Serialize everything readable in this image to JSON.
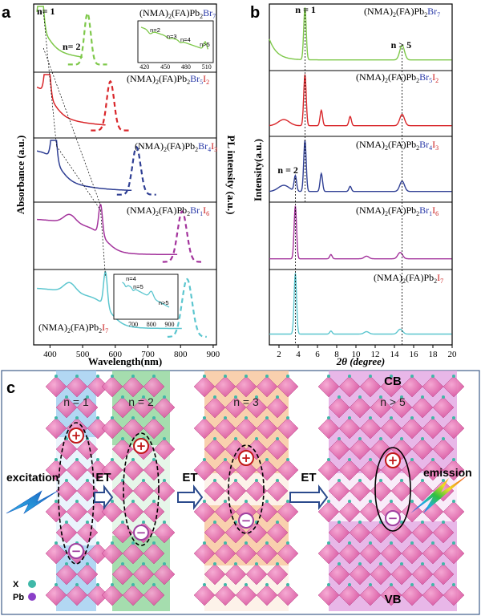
{
  "panels": {
    "a": "a",
    "b": "b",
    "c": "c"
  },
  "chart_data": [
    {
      "panel": "a",
      "type": "line",
      "xlabel": "Wavelength(nm)",
      "ylabel_left": "Absorbance (a.u.)",
      "ylabel_right": "PL intensity (a.u.)",
      "xlim": [
        350,
        910
      ],
      "xticks": [
        400,
        500,
        600,
        700,
        800,
        900
      ],
      "stacked": true,
      "series": [
        {
          "compound": "Br7",
          "color": "#7ec84a",
          "abs_onset_nm": 380,
          "pl_peak_nm": 515,
          "labels": [
            {
              "text": "n= 1",
              "x": 370
            },
            {
              "text": "n= 2",
              "x": 430
            }
          ]
        },
        {
          "compound": "Br5I2",
          "color": "#d9262a",
          "abs_onset_nm": 400,
          "pl_peak_nm": 585
        },
        {
          "compound": "Br4I3",
          "color": "#2f3f94",
          "abs_onset_nm": 420,
          "pl_peak_nm": 665
        },
        {
          "compound": "Br1I6",
          "color": "#a3339c",
          "abs_onset_nm": 555,
          "pl_peak_nm": 805
        },
        {
          "compound": "I7",
          "color": "#5cc6cf",
          "abs_onset_nm": 570,
          "pl_peak_nm": 820
        }
      ],
      "insets": [
        {
          "xticks": [
            420,
            450,
            480,
            510
          ],
          "labels": [
            "n=2",
            "n=3",
            "n=4",
            "n>5"
          ]
        },
        {
          "xticks": [
            700,
            800,
            900
          ],
          "labels": [
            "n=4",
            "n=5",
            "n>5"
          ]
        }
      ]
    },
    {
      "panel": "b",
      "type": "line",
      "xlabel": "2θ (degree)",
      "ylabel": "Intensity(a.u.)",
      "xlim": [
        1,
        20
      ],
      "xticks": [
        2,
        4,
        6,
        8,
        10,
        12,
        14,
        16,
        18,
        20
      ],
      "stacked": true,
      "annotations": [
        {
          "text": "n = 1",
          "x": 4.7
        },
        {
          "text": "n > 5",
          "x": 14.8
        },
        {
          "text": "n = 2",
          "x": 3.7
        }
      ],
      "series": [
        {
          "compound": "Br7",
          "color": "#7ec84a",
          "peaks_2theta": [
            4.7,
            14.8
          ]
        },
        {
          "compound": "Br5I2",
          "color": "#d9262a",
          "peaks_2theta": [
            4.7,
            6.4,
            9.4,
            14.8
          ]
        },
        {
          "compound": "Br4I3",
          "color": "#2f3f94",
          "peaks_2theta": [
            3.7,
            4.7,
            6.4,
            9.4,
            14.8
          ]
        },
        {
          "compound": "Br1I6",
          "color": "#a3339c",
          "peaks_2theta": [
            3.7,
            7.4,
            11.1,
            14.6
          ]
        },
        {
          "compound": "I7",
          "color": "#5cc6cf",
          "peaks_2theta": [
            3.7,
            7.4,
            11.1,
            14.6
          ]
        }
      ]
    }
  ],
  "compounds": {
    "Br7": {
      "prefix": "(NMA)",
      "s1": "2",
      "mid": "(FA)Pb",
      "s2": "2",
      "el1": "Br",
      "n1": "7",
      "el2": "",
      "n2": ""
    },
    "Br5I2": {
      "prefix": "(NMA)",
      "s1": "2",
      "mid": "(FA)Pb",
      "s2": "2",
      "el1": "Br",
      "n1": "5",
      "el2": "I",
      "n2": "2"
    },
    "Br4I3": {
      "prefix": "(NMA)",
      "s1": "2",
      "mid": "(FA)Pb",
      "s2": "2",
      "el1": "Br",
      "n1": "4",
      "el2": "I",
      "n2": "3"
    },
    "Br1I6": {
      "prefix": "(NMA)",
      "s1": "2",
      "mid": "(FA)Pb",
      "s2": "2",
      "el1": "Br",
      "n1": "1",
      "el2": "I",
      "n2": "6"
    },
    "I7": {
      "prefix": "(NMA)",
      "s1": "2",
      "mid": "(FA)Pb",
      "s2": "2",
      "el1": "",
      "n1": "",
      "el2": "I",
      "n2": "7"
    }
  },
  "element_colors": {
    "Br": "#2a3aa8",
    "I": "#cc2020"
  },
  "schematic": {
    "stages": [
      {
        "label": "n = 1",
        "color": "#9fcdf0"
      },
      {
        "label": "n = 2",
        "color": "#8fd49a"
      },
      {
        "label": "n = 3",
        "color": "#f7c49a"
      },
      {
        "label": "n > 5",
        "color": "#e2a6e2"
      }
    ],
    "transfer_label": "ET",
    "excitation": "excitation",
    "emission": "emission",
    "cb": "CB",
    "vb": "VB",
    "legend": [
      {
        "label": "X",
        "color": "#3fb8a8"
      },
      {
        "label": "Pb",
        "color": "#8a3fc8"
      }
    ],
    "plus": "+",
    "minus": "−"
  }
}
